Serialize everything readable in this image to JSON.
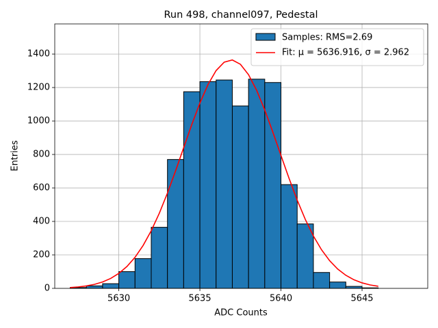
{
  "chart_data": {
    "type": "histogram",
    "title": "Run 498, channel097, Pedestal",
    "xlabel": "ADC Counts",
    "ylabel": "Entries",
    "name": "Samples: RMS=2.69",
    "color": "#1f77b4",
    "edgecolor": "#000000",
    "bins": [
      5627,
      5628,
      5629,
      5630,
      5631,
      5632,
      5633,
      5634,
      5635,
      5636,
      5637,
      5638,
      5639,
      5640,
      5641,
      5642,
      5643,
      5644,
      5645,
      5646
    ],
    "counts": [
      5,
      15,
      28,
      100,
      178,
      365,
      770,
      1175,
      1235,
      1245,
      1090,
      1250,
      1230,
      620,
      385,
      95,
      38,
      12,
      3
    ],
    "fit": {
      "name": "Fit: μ = 5636.916, σ = 2.962",
      "color": "#ff0000",
      "x": [
        5627,
        5627.5,
        5628,
        5628.5,
        5629,
        5629.5,
        5630,
        5630.5,
        5631,
        5631.5,
        5632,
        5632.5,
        5633,
        5633.5,
        5634,
        5634.5,
        5635,
        5635.5,
        5636,
        5636.5,
        5637,
        5637.5,
        5638,
        5638.5,
        5639,
        5639.5,
        5640,
        5640.5,
        5641,
        5641.5,
        5642,
        5642.5,
        5643,
        5643.5,
        5644,
        5644.5,
        5645,
        5645.5,
        5646
      ],
      "values": [
        5.0,
        8.7,
        14.7,
        24.1,
        38.4,
        59.4,
        89.4,
        130.6,
        185.6,
        256.5,
        344.4,
        449.4,
        569.5,
        702.0,
        840.8,
        978.7,
        1107.4,
        1217.6,
        1301.3,
        1351.6,
        1364.5,
        1338.7,
        1276.6,
        1183.2,
        1065.7,
        933.0,
        793.9,
        656.6,
        527.6,
        412.1,
        312.9,
        230.8,
        165.4,
        115.3,
        78.2,
        51.5,
        32.9,
        20.5,
        12.4
      ]
    },
    "xlim": [
      5626.05,
      5649.05
    ],
    "ylim": [
      0,
      1580
    ],
    "xticks": [
      5630,
      5635,
      5640,
      5645
    ],
    "yticks": [
      0,
      200,
      400,
      600,
      800,
      1000,
      1200,
      1400
    ],
    "grid": true,
    "legend": "upper right"
  }
}
